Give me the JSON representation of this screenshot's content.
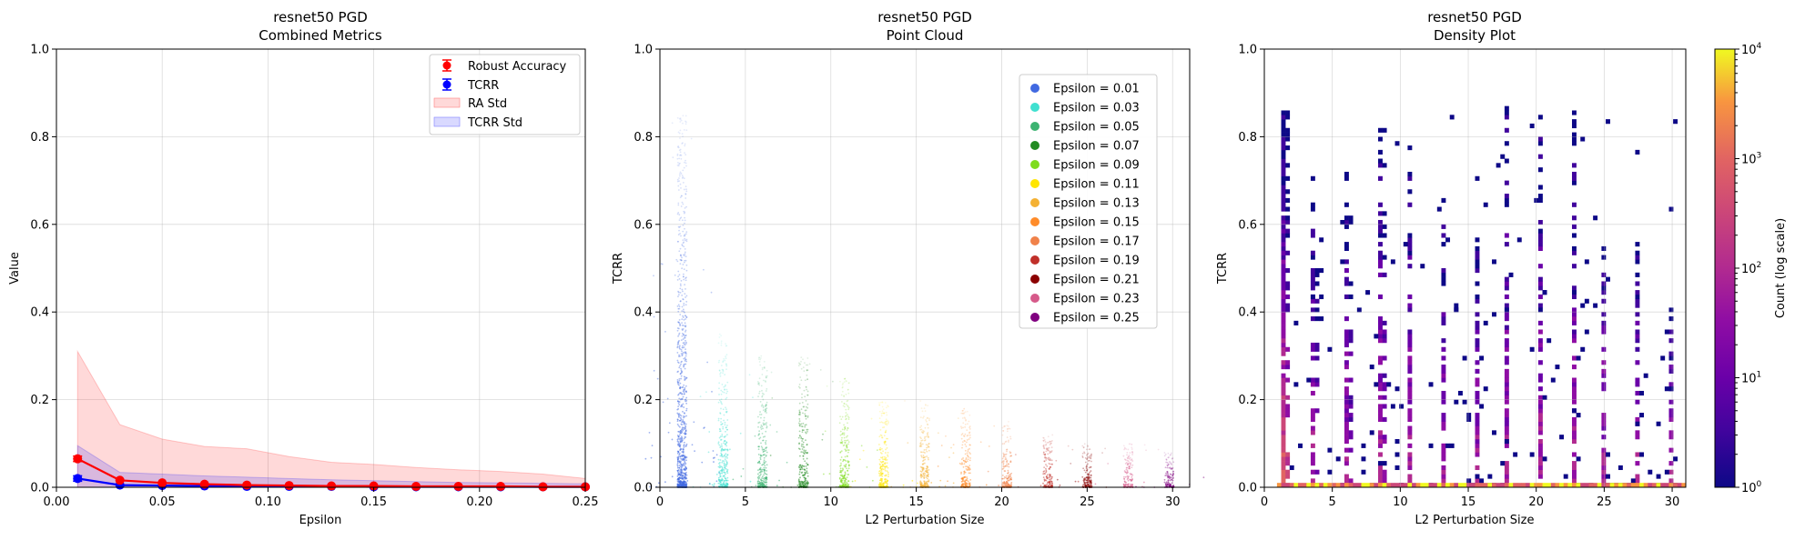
{
  "chart_data": [
    {
      "type": "line",
      "title_line1": "resnet50 PGD",
      "title_line2": "Combined Metrics",
      "xlabel": "Epsilon",
      "ylabel": "Value",
      "xlim": [
        0.0,
        0.25
      ],
      "ylim": [
        0.0,
        1.0
      ],
      "xticks": [
        "0.00",
        "0.05",
        "0.10",
        "0.15",
        "0.20",
        "0.25"
      ],
      "yticks": [
        "0.0",
        "0.2",
        "0.4",
        "0.6",
        "0.8",
        "1.0"
      ],
      "grid": true,
      "legend_position": "top-right",
      "legend": [
        "Robust Accuracy",
        "TCRR",
        "RA Std",
        "TCRR Std"
      ],
      "x": [
        0.01,
        0.03,
        0.05,
        0.07,
        0.09,
        0.11,
        0.13,
        0.15,
        0.17,
        0.19,
        0.21,
        0.23,
        0.25
      ],
      "series": [
        {
          "name": "Robust Accuracy",
          "color": "#ff0000",
          "values": [
            0.065,
            0.016,
            0.01,
            0.007,
            0.005,
            0.004,
            0.003,
            0.003,
            0.002,
            0.002,
            0.002,
            0.001,
            0.001
          ],
          "std_upper": [
            0.31,
            0.143,
            0.11,
            0.093,
            0.088,
            0.07,
            0.057,
            0.052,
            0.045,
            0.04,
            0.036,
            0.03,
            0.02
          ]
        },
        {
          "name": "TCRR",
          "color": "#0000ff",
          "values": [
            0.02,
            0.005,
            0.004,
            0.003,
            0.002,
            0.002,
            0.002,
            0.001,
            0.001,
            0.001,
            0.001,
            0.001,
            0.001
          ],
          "std_upper": [
            0.095,
            0.034,
            0.03,
            0.026,
            0.023,
            0.02,
            0.017,
            0.015,
            0.013,
            0.011,
            0.01,
            0.009,
            0.008
          ]
        }
      ]
    },
    {
      "type": "scatter",
      "title_line1": "resnet50 PGD",
      "title_line2": "Point Cloud",
      "xlabel": "L2 Perturbation Size",
      "ylabel": "TCRR",
      "xlim": [
        0,
        31
      ],
      "ylim": [
        0.0,
        1.0
      ],
      "xticks": [
        "0",
        "5",
        "10",
        "15",
        "20",
        "25",
        "30"
      ],
      "yticks": [
        "0.0",
        "0.2",
        "0.4",
        "0.6",
        "0.8",
        "1.0"
      ],
      "grid": true,
      "legend_position": "top-right",
      "series": [
        {
          "name": "Epsilon = 0.01",
          "color": "#4169e1",
          "x_center": 1.3,
          "y_max": 0.85
        },
        {
          "name": "Epsilon = 0.03",
          "color": "#40e0d0",
          "x_center": 3.7,
          "y_max": 0.35
        },
        {
          "name": "Epsilon = 0.05",
          "color": "#3cb371",
          "x_center": 6.0,
          "y_max": 0.3
        },
        {
          "name": "Epsilon = 0.07",
          "color": "#228b22",
          "x_center": 8.4,
          "y_max": 0.3
        },
        {
          "name": "Epsilon = 0.09",
          "color": "#7fdc1e",
          "x_center": 10.8,
          "y_max": 0.25
        },
        {
          "name": "Epsilon = 0.11",
          "color": "#ffe600",
          "x_center": 13.1,
          "y_max": 0.2
        },
        {
          "name": "Epsilon = 0.13",
          "color": "#f4b133",
          "x_center": 15.5,
          "y_max": 0.2
        },
        {
          "name": "Epsilon = 0.15",
          "color": "#ff8c2a",
          "x_center": 17.9,
          "y_max": 0.18
        },
        {
          "name": "Epsilon = 0.17",
          "color": "#f0824a",
          "x_center": 20.3,
          "y_max": 0.15
        },
        {
          "name": "Epsilon = 0.19",
          "color": "#c0302a",
          "x_center": 22.7,
          "y_max": 0.12
        },
        {
          "name": "Epsilon = 0.21",
          "color": "#8b0000",
          "x_center": 25.0,
          "y_max": 0.1
        },
        {
          "name": "Epsilon = 0.23",
          "color": "#d65a8a",
          "x_center": 27.4,
          "y_max": 0.1
        },
        {
          "name": "Epsilon = 0.25",
          "color": "#800080",
          "x_center": 29.8,
          "y_max": 0.08
        }
      ]
    },
    {
      "type": "heatmap",
      "title_line1": "resnet50 PGD",
      "title_line2": "Density Plot",
      "xlabel": "L2 Perturbation Size",
      "ylabel": "TCRR",
      "xlim": [
        0,
        31
      ],
      "ylim": [
        0.0,
        1.0
      ],
      "xticks": [
        "0",
        "5",
        "10",
        "15",
        "20",
        "25",
        "30"
      ],
      "yticks": [
        "0.0",
        "0.2",
        "0.4",
        "0.6",
        "0.8",
        "1.0"
      ],
      "grid": true,
      "colorbar_label": "Count (log scale)",
      "colorbar_scale": "log",
      "colorbar_range": [
        1,
        10000
      ],
      "colorbar_ticks": [
        {
          "base": "10",
          "exp": "0"
        },
        {
          "base": "10",
          "exp": "1"
        },
        {
          "base": "10",
          "exp": "2"
        },
        {
          "base": "10",
          "exp": "3"
        },
        {
          "base": "10",
          "exp": "4"
        }
      ],
      "column_centers": [
        1.3,
        3.7,
        6.0,
        8.4,
        10.8,
        13.1,
        15.5,
        17.9,
        20.3,
        22.7,
        25.0,
        27.4,
        29.8
      ],
      "column_tops": [
        0.85,
        0.7,
        0.72,
        0.82,
        0.8,
        0.65,
        0.6,
        0.88,
        0.84,
        0.85,
        0.62,
        0.58,
        0.4
      ]
    }
  ]
}
